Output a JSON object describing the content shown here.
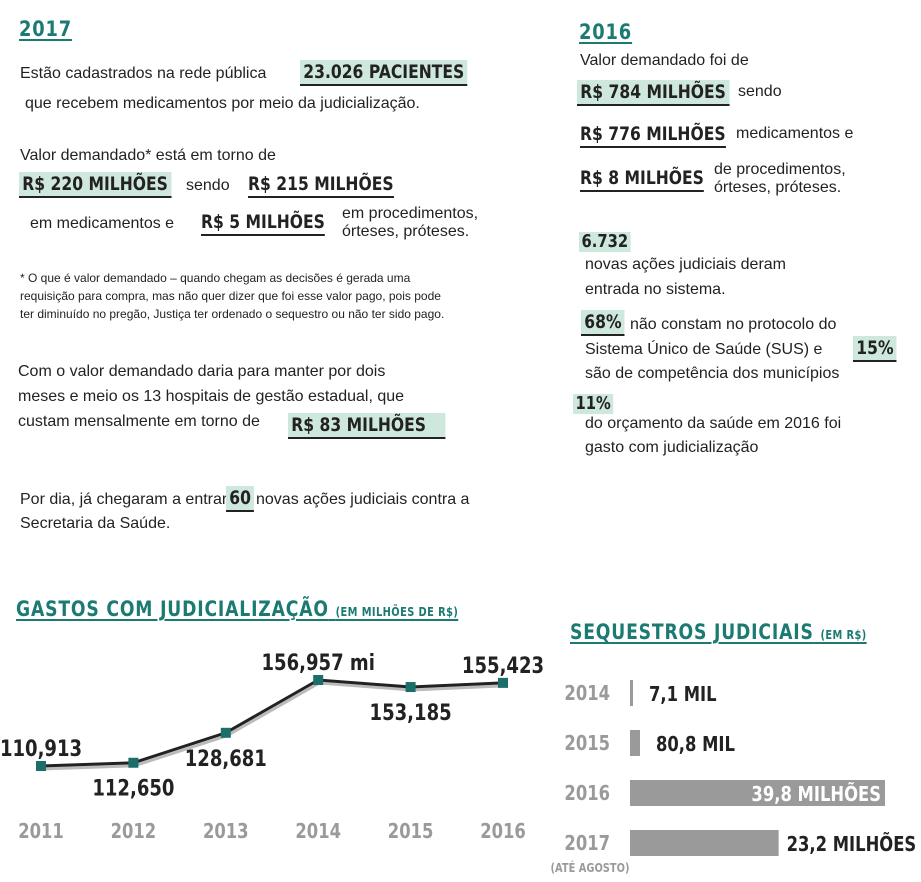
{
  "left": {
    "year": "2017",
    "p1": {
      "pre": "Estão cadastrados na rede pública",
      "highlight": "23.026 PACIENTES",
      "post": "que recebem medicamentos por meio da judicialização."
    },
    "p2": {
      "pre": "Valor demandado* está em torno de",
      "total": "R$ 220 MILHÕES",
      "sendo": "sendo",
      "meds": "R$ 215 MILHÕES",
      "meds_label": "em medicamentos e",
      "proc": "R$ 5 MILHÕES",
      "proc_label_1": "em procedimentos,",
      "proc_label_2": "órteses, próteses."
    },
    "note_lines": [
      "* O que é valor demandado – quando chegam as decisões é gerada uma",
      "requisição para compra, mas não quer dizer que foi esse valor pago, pois pode",
      "ter diminuído no pregão, Justiça ter ordenado o sequestro ou não ter sido pago."
    ],
    "p3": {
      "lines": [
        "Com o valor demandado daria para manter por dois",
        "meses e meio os 13 hospitais de gestão estadual, que",
        "custam mensalmente em torno de"
      ],
      "highlight": "R$ 83 MILHÕES"
    },
    "p4": {
      "pre": "Por dia, já chegaram a entrar",
      "highlight": "60",
      "post": "novas ações judiciais contra a",
      "line2": "Secretaria da Saúde."
    }
  },
  "right": {
    "year": "2016",
    "intro": "Valor demandado foi de",
    "total": "R$ 784 MILHÕES",
    "sendo": "sendo",
    "meds": "R$ 776 MILHÕES",
    "meds_label": "medicamentos e",
    "proc": "R$ 8 MILHÕES",
    "proc_label_1": "de procedimentos,",
    "proc_label_2": "órteses, próteses.",
    "acoes_num": "6.732",
    "acoes_line1": "novas ações judiciais deram",
    "acoes_line2": "entrada no sistema.",
    "pct1": "68%",
    "pct1_text": "não constam no protocolo do",
    "pct1_line2": "Sistema Único de Saúde (SUS) e",
    "pct2": "15%",
    "pct2_text": "são de competência dos municípios",
    "pct3": "11%",
    "pct3_line1": "do orçamento da saúde em 2016 foi",
    "pct3_line2": "gasto com judicialização"
  },
  "chart_data": [
    {
      "type": "line",
      "title": "GASTOS COM JUDICIALIZAÇÃO",
      "subtitle": "(EM MILHÕES DE R$)",
      "x": [
        "2011",
        "2012",
        "2013",
        "2014",
        "2015",
        "2016"
      ],
      "values": [
        110.913,
        112.65,
        128.681,
        156.957,
        153.185,
        155.423
      ],
      "data_labels": [
        "110,913",
        "112,650",
        "128,681",
        "156,957 mi",
        "153,185",
        "155,423"
      ],
      "colors": {
        "line": "#222222",
        "marker": "#1b6e6a",
        "shadow": "#bbbbbb"
      }
    },
    {
      "type": "bar",
      "orientation": "horizontal",
      "title": "SEQUESTROS JUDICIAIS",
      "subtitle": "(EM R$)",
      "categories": [
        "2014",
        "2015",
        "2016",
        "2017"
      ],
      "category_notes": [
        "",
        "",
        "",
        "(ATÉ AGOSTO)"
      ],
      "values": [
        7.1,
        80.8,
        39800,
        23200
      ],
      "unit": "mil R$",
      "data_labels": [
        "7,1 MIL",
        "80,8 MIL",
        "39,8 MILHÕES",
        "23,2 MILHÕES"
      ],
      "colors": {
        "bar": "#9a9a9a",
        "label_inside": "#ffffff",
        "label": "#222222"
      }
    }
  ]
}
